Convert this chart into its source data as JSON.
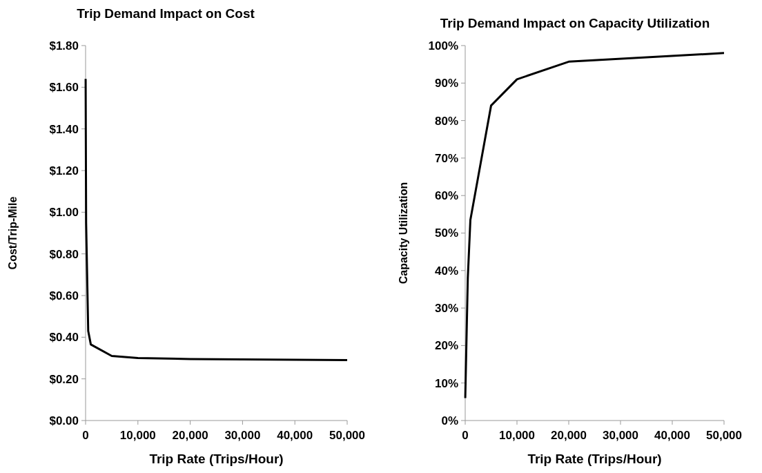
{
  "chart_data": [
    {
      "type": "line",
      "title": "Trip Demand Impact on Cost",
      "xlabel": "Trip Rate (Trips/Hour)",
      "ylabel": "Cost/Trip-Mile",
      "x": [
        10,
        100,
        500,
        1000,
        5000,
        10000,
        20000,
        50000
      ],
      "series": [
        {
          "color": "#000000",
          "values": [
            1.64,
            0.95,
            0.43,
            0.365,
            0.31,
            0.3,
            0.295,
            0.29
          ]
        }
      ],
      "xlim": [
        0,
        50000
      ],
      "xticks": [
        0,
        {
          "value": 10000,
          "label": "10,000"
        },
        {
          "value": 20000,
          "label": "20,000"
        },
        {
          "value": 30000,
          "label": "30,000"
        },
        {
          "value": 40000,
          "label": "40,000"
        },
        {
          "value": 50000,
          "label": "50,000"
        }
      ],
      "ylim": [
        0,
        1.8
      ],
      "yticks": [
        {
          "value": 0,
          "label": "$0.00"
        },
        {
          "value": 0.2,
          "label": "$0.20"
        },
        {
          "value": 0.4,
          "label": "$0.40"
        },
        {
          "value": 0.6,
          "label": "$0.60"
        },
        {
          "value": 0.8,
          "label": "$0.80"
        },
        {
          "value": 1,
          "label": "$1.00"
        },
        {
          "value": 1.2,
          "label": "$1.20"
        },
        {
          "value": 1.4,
          "label": "$1.40"
        },
        {
          "value": 1.6,
          "label": "$1.60"
        },
        {
          "value": 1.8,
          "label": "$1.80"
        }
      ],
      "grid": false,
      "marker": "none",
      "line_style": "solid"
    },
    {
      "type": "line",
      "title": "Trip Demand Impact on Capacity Utilization",
      "xlabel": "Trip Rate (Trips/Hour)",
      "ylabel": "Capacity Utilization",
      "x": [
        10,
        500,
        1000,
        5000,
        10000,
        20000,
        50000
      ],
      "series": [
        {
          "color": "#000000",
          "values": [
            6,
            38,
            53.5,
            84,
            91,
            95.7,
            98
          ]
        }
      ],
      "xlim": [
        0,
        50000
      ],
      "xticks": [
        0,
        {
          "value": 10000,
          "label": "10,000"
        },
        {
          "value": 20000,
          "label": "20,000"
        },
        {
          "value": 30000,
          "label": "30,000"
        },
        {
          "value": 40000,
          "label": "40,000"
        },
        {
          "value": 50000,
          "label": "50,000"
        }
      ],
      "ylim": [
        0,
        100
      ],
      "yticks": [
        {
          "value": 0,
          "label": "0%"
        },
        {
          "value": 10,
          "label": "10%"
        },
        {
          "value": 20,
          "label": "20%"
        },
        {
          "value": 30,
          "label": "30%"
        },
        {
          "value": 40,
          "label": "40%"
        },
        {
          "value": 50,
          "label": "50%"
        },
        {
          "value": 60,
          "label": "60%"
        },
        {
          "value": 70,
          "label": "70%"
        },
        {
          "value": 80,
          "label": "80%"
        },
        {
          "value": 90,
          "label": "90%"
        },
        {
          "value": 100,
          "label": "100%"
        }
      ],
      "grid": false,
      "marker": "none",
      "line_style": "solid"
    }
  ]
}
